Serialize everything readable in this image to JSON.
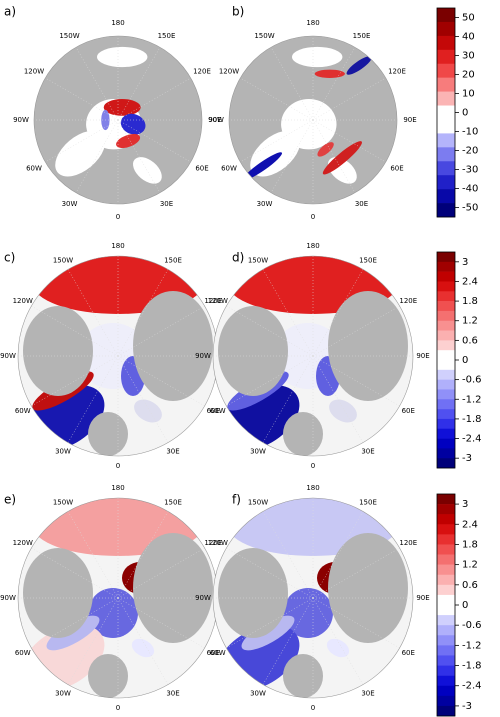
{
  "panels": [
    {
      "label": "a)"
    },
    {
      "label": "b)"
    },
    {
      "label": "c)"
    },
    {
      "label": "d)"
    },
    {
      "label": "e)"
    },
    {
      "label": "f)"
    }
  ],
  "longitude_labels": [
    "180",
    "150E",
    "120E",
    "90E",
    "60E",
    "30E",
    "0",
    "30W",
    "60W",
    "90W",
    "120W",
    "150W"
  ],
  "colorbars": [
    {
      "ticks": [
        50,
        40,
        30,
        20,
        10,
        0,
        -10,
        -20,
        -30,
        -40,
        -50
      ],
      "lim": [
        -55,
        55
      ],
      "colors": [
        "#7a0000",
        "#a00000",
        "#c40808",
        "#e02020",
        "#f04848",
        "#f77c7c",
        "#fbb4b4",
        "#ffffff",
        "#ffffff",
        "#b4b4fb",
        "#7c7cf0",
        "#4848e0",
        "#2020c8",
        "#0808a8",
        "#00007a"
      ]
    },
    {
      "ticks": [
        3,
        2.4,
        1.8,
        1.2,
        0.6,
        0,
        -0.6,
        -1.2,
        -1.8,
        -2.4,
        -3
      ],
      "lim": [
        -3.3,
        3.3
      ],
      "colors": [
        "#7a0000",
        "#a00000",
        "#c00000",
        "#d81010",
        "#e83030",
        "#f05050",
        "#f47070",
        "#f89090",
        "#fbb0b0",
        "#fdd0d0",
        "#ffffff",
        "#ffffff",
        "#d0d0fd",
        "#b0b0fb",
        "#9090f8",
        "#7070f4",
        "#5050f0",
        "#3030e8",
        "#1010d8",
        "#0000c0",
        "#0000a0",
        "#00007a"
      ]
    },
    {
      "ticks": [
        3,
        2.4,
        1.8,
        1.2,
        0.6,
        0,
        -0.6,
        -1.2,
        -1.8,
        -2.4,
        -3
      ],
      "lim": [
        -3.3,
        3.3
      ],
      "colors": [
        "#7a0000",
        "#a00000",
        "#c00000",
        "#d81010",
        "#e83030",
        "#f05050",
        "#f47070",
        "#f89090",
        "#fbb0b0",
        "#fdd0d0",
        "#ffffff",
        "#ffffff",
        "#d0d0fd",
        "#b0b0fb",
        "#9090f8",
        "#7070f4",
        "#5050f0",
        "#3030e8",
        "#1010d8",
        "#0000c0",
        "#0000a0",
        "#00007a"
      ]
    }
  ]
}
